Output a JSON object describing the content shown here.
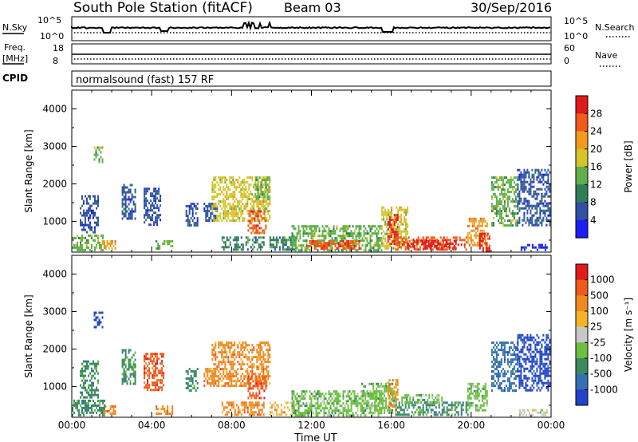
{
  "header": {
    "station": "South Pole Station (fitACF)",
    "beam": "Beam 03",
    "date": "30/Sep/2016"
  },
  "strips": {
    "nsky_label": "N.Sky",
    "nsky_ticks": [
      "10^5",
      "10^0"
    ],
    "nsearch_label": "N.Search",
    "nsearch_ticks": [
      "10^5",
      "10^0"
    ],
    "freq_label_1": "Freq.",
    "freq_label_2": "[MHz]",
    "freq_ticks": [
      "18",
      "8"
    ],
    "nave_label": "Nave",
    "nave_ticks": [
      "60",
      "0"
    ],
    "cpid_label": "CPID",
    "cpid_text": "normalsound (fast) 157 RF"
  },
  "chart_data": [
    {
      "type": "heatmap",
      "name": "power",
      "ylabel": "Slant Range [km]",
      "yticks": [
        "1000",
        "2000",
        "3000",
        "4000"
      ],
      "ylim": [
        180,
        4500
      ],
      "xlim": [
        0,
        24
      ],
      "colorbar": {
        "label": "Power [dB]",
        "ticks": [
          "4",
          "8",
          "12",
          "16",
          "20",
          "24",
          "28"
        ],
        "colors": [
          "#1d1df5",
          "#3050a8",
          "#2f7d55",
          "#5fb04a",
          "#d6c52a",
          "#f29a1e",
          "#f05a1a",
          "#e01a1a"
        ]
      },
      "patches": [
        {
          "t0": 0.0,
          "t1": 1.6,
          "r0": 250,
          "r1": 650,
          "c": 3
        },
        {
          "t0": 0.4,
          "t1": 1.3,
          "r0": 700,
          "r1": 1700,
          "c": 1
        },
        {
          "t0": 1.1,
          "t1": 1.5,
          "r0": 2600,
          "r1": 3000,
          "c": 3
        },
        {
          "t0": 1.5,
          "t1": 2.2,
          "r0": 250,
          "r1": 500,
          "c": 5
        },
        {
          "t0": 2.5,
          "t1": 3.2,
          "r0": 1100,
          "r1": 2000,
          "c": 1
        },
        {
          "t0": 3.6,
          "t1": 4.4,
          "r0": 900,
          "r1": 1900,
          "c": 1
        },
        {
          "t0": 4.2,
          "t1": 5.0,
          "r0": 250,
          "r1": 500,
          "c": 3
        },
        {
          "t0": 5.7,
          "t1": 6.3,
          "r0": 900,
          "r1": 1500,
          "c": 1
        },
        {
          "t0": 6.6,
          "t1": 7.3,
          "r0": 1000,
          "r1": 1500,
          "c": 1
        },
        {
          "t0": 7.0,
          "t1": 9.9,
          "r0": 1000,
          "r1": 2200,
          "c": 4
        },
        {
          "t0": 7.5,
          "t1": 9.6,
          "r0": 250,
          "r1": 600,
          "c": 2
        },
        {
          "t0": 8.8,
          "t1": 9.7,
          "r0": 700,
          "r1": 1300,
          "c": 6
        },
        {
          "t0": 9.2,
          "t1": 9.9,
          "r0": 1600,
          "r1": 2200,
          "c": 3
        },
        {
          "t0": 9.9,
          "t1": 11.2,
          "r0": 250,
          "r1": 600,
          "c": 2
        },
        {
          "t0": 11.0,
          "t1": 15.5,
          "r0": 250,
          "r1": 900,
          "c": 3
        },
        {
          "t0": 11.8,
          "t1": 14.5,
          "r0": 250,
          "r1": 500,
          "c": 6
        },
        {
          "t0": 15.5,
          "t1": 16.8,
          "r0": 300,
          "r1": 1400,
          "c": 4
        },
        {
          "t0": 15.8,
          "t1": 16.3,
          "r0": 400,
          "r1": 1200,
          "c": 7
        },
        {
          "t0": 16.2,
          "t1": 19.8,
          "r0": 250,
          "r1": 600,
          "c": 6
        },
        {
          "t0": 16.8,
          "t1": 19.2,
          "r0": 300,
          "r1": 500,
          "c": 7
        },
        {
          "t0": 19.8,
          "t1": 20.8,
          "r0": 350,
          "r1": 1100,
          "c": 5
        },
        {
          "t0": 20.4,
          "t1": 20.9,
          "r0": 250,
          "r1": 700,
          "c": 7
        },
        {
          "t0": 21.0,
          "t1": 22.3,
          "r0": 900,
          "r1": 2200,
          "c": 3
        },
        {
          "t0": 22.3,
          "t1": 23.9,
          "r0": 900,
          "r1": 2400,
          "c": 1
        },
        {
          "t0": 22.4,
          "t1": 23.8,
          "r0": 250,
          "r1": 400,
          "c": 0
        }
      ]
    },
    {
      "type": "heatmap",
      "name": "velocity",
      "ylabel": "Slant Range [km]",
      "yticks": [
        "1000",
        "2000",
        "3000",
        "4000"
      ],
      "ylim": [
        180,
        4500
      ],
      "xlim": [
        0,
        24
      ],
      "colorbar": {
        "label": "Velocity [m s⁻¹]",
        "ticks": [
          "1000",
          "500",
          "100",
          "25",
          "-25",
          "-100",
          "-500",
          "-1000"
        ],
        "colors": [
          "#2244c8",
          "#3570b2",
          "#3a8a5c",
          "#6cc040",
          "#c8c8c8",
          "#f5b428",
          "#f08a1e",
          "#f25a1a",
          "#e01a1a"
        ]
      },
      "patches": [
        {
          "t0": 0.0,
          "t1": 1.6,
          "r0": 250,
          "r1": 650,
          "c": 2
        },
        {
          "t0": 0.4,
          "t1": 1.3,
          "r0": 700,
          "r1": 1700,
          "c": 2
        },
        {
          "t0": 1.1,
          "t1": 1.5,
          "r0": 2600,
          "r1": 3000,
          "c": 0
        },
        {
          "t0": 1.5,
          "t1": 2.2,
          "r0": 250,
          "r1": 500,
          "c": 6
        },
        {
          "t0": 2.5,
          "t1": 3.2,
          "r0": 1100,
          "r1": 2000,
          "c": 2
        },
        {
          "t0": 3.6,
          "t1": 4.6,
          "r0": 900,
          "r1": 1900,
          "c": 7
        },
        {
          "t0": 4.2,
          "t1": 5.0,
          "r0": 250,
          "r1": 500,
          "c": 6
        },
        {
          "t0": 5.7,
          "t1": 6.3,
          "r0": 900,
          "r1": 1500,
          "c": 2
        },
        {
          "t0": 6.6,
          "t1": 7.3,
          "r0": 1000,
          "r1": 1500,
          "c": 6
        },
        {
          "t0": 7.0,
          "t1": 9.9,
          "r0": 1000,
          "r1": 2200,
          "c": 6
        },
        {
          "t0": 7.5,
          "t1": 9.6,
          "r0": 250,
          "r1": 600,
          "c": 6
        },
        {
          "t0": 8.8,
          "t1": 9.7,
          "r0": 700,
          "r1": 1300,
          "c": 7
        },
        {
          "t0": 9.9,
          "t1": 11.2,
          "r0": 250,
          "r1": 600,
          "c": 5
        },
        {
          "t0": 11.0,
          "t1": 15.5,
          "r0": 250,
          "r1": 900,
          "c": 3
        },
        {
          "t0": 14.5,
          "t1": 16.2,
          "r0": 300,
          "r1": 1100,
          "c": 3
        },
        {
          "t0": 15.8,
          "t1": 16.3,
          "r0": 400,
          "r1": 1200,
          "c": 6
        },
        {
          "t0": 16.2,
          "t1": 19.8,
          "r0": 250,
          "r1": 600,
          "c": 2
        },
        {
          "t0": 16.5,
          "t1": 18.5,
          "r0": 600,
          "r1": 800,
          "c": 3
        },
        {
          "t0": 19.8,
          "t1": 20.8,
          "r0": 350,
          "r1": 1100,
          "c": 3
        },
        {
          "t0": 21.0,
          "t1": 22.3,
          "r0": 900,
          "r1": 2200,
          "c": 1
        },
        {
          "t0": 22.3,
          "t1": 23.9,
          "r0": 900,
          "r1": 2400,
          "c": 0
        },
        {
          "t0": 22.4,
          "t1": 23.8,
          "r0": 250,
          "r1": 400,
          "c": 4
        }
      ]
    }
  ],
  "xaxis": {
    "label": "Time UT",
    "ticks": [
      "00:00",
      "04:00",
      "08:00",
      "12:00",
      "16:00",
      "20:00",
      "00:00"
    ]
  }
}
